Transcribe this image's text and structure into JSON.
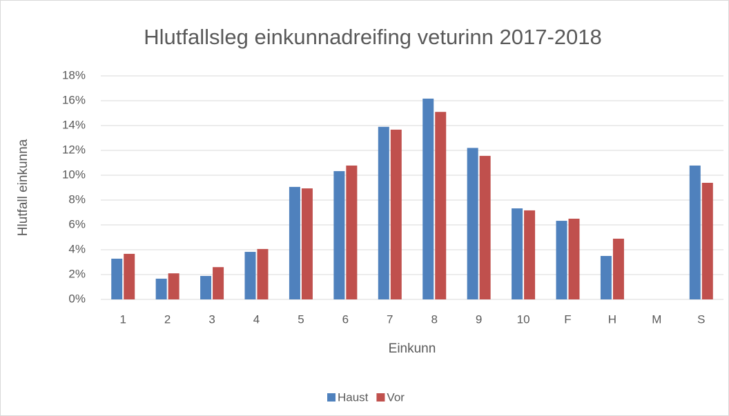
{
  "chart_data": {
    "type": "bar",
    "title": "Hlutfallsleg einkunnadreifing veturinn 2017-2018",
    "x_label": "Einkunn",
    "y_label": "Hlutfall einkunna",
    "categories": [
      "1",
      "2",
      "3",
      "4",
      "5",
      "6",
      "7",
      "8",
      "9",
      "10",
      "F",
      "H",
      "M",
      "S"
    ],
    "series": [
      {
        "name": "Haust",
        "color": "#4f81bd",
        "values": [
          3.28,
          1.67,
          1.89,
          3.83,
          9.06,
          10.33,
          13.9,
          16.17,
          12.2,
          7.33,
          6.33,
          3.5,
          0,
          10.78
        ]
      },
      {
        "name": "Vor",
        "color": "#c0504d",
        "values": [
          3.67,
          2.1,
          2.6,
          4.06,
          8.94,
          10.78,
          13.67,
          15.1,
          11.56,
          7.17,
          6.5,
          4.89,
          0,
          9.39
        ]
      }
    ],
    "ylim": [
      0,
      18
    ],
    "yticks": [
      {
        "value": 0,
        "label": "0%"
      },
      {
        "value": 2,
        "label": "2%"
      },
      {
        "value": 4,
        "label": "4%"
      },
      {
        "value": 6,
        "label": "6%"
      },
      {
        "value": 8,
        "label": "8%"
      },
      {
        "value": 10,
        "label": "10%"
      },
      {
        "value": 12,
        "label": "12%"
      },
      {
        "value": 14,
        "label": "14%"
      },
      {
        "value": 16,
        "label": "16%"
      },
      {
        "value": 18,
        "label": "18%"
      }
    ],
    "grid": true,
    "legend": "bottom"
  }
}
